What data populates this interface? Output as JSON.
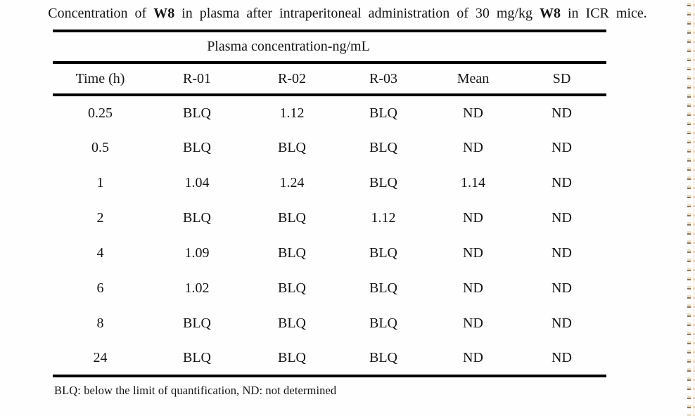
{
  "title": {
    "part1": "Concentration of ",
    "bold1": "W8",
    "part2": " in plasma after intraperitoneal administration of 30 mg/kg ",
    "bold2": "W8",
    "part3": " in ICR mice."
  },
  "table": {
    "span_header": "Plasma concentration-ng/mL",
    "columns": [
      "Time (h)",
      "R-01",
      "R-02",
      "R-03",
      "Mean",
      "SD"
    ],
    "rows": [
      [
        "0.25",
        "BLQ",
        "1.12",
        "BLQ",
        "ND",
        "ND"
      ],
      [
        "0.5",
        "BLQ",
        "BLQ",
        "BLQ",
        "ND",
        "ND"
      ],
      [
        "1",
        "1.04",
        "1.24",
        "BLQ",
        "1.14",
        "ND"
      ],
      [
        "2",
        "BLQ",
        "BLQ",
        "1.12",
        "ND",
        "ND"
      ],
      [
        "4",
        "1.09",
        "BLQ",
        "BLQ",
        "ND",
        "ND"
      ],
      [
        "6",
        "1.02",
        "BLQ",
        "BLQ",
        "ND",
        "ND"
      ],
      [
        "8",
        "BLQ",
        "BLQ",
        "BLQ",
        "ND",
        "ND"
      ],
      [
        "24",
        "BLQ",
        "BLQ",
        "BLQ",
        "ND",
        "ND"
      ]
    ]
  },
  "footnote": "BLQ: below the limit of quantification, ND: not determined",
  "colors": {
    "text": "#141414",
    "rule": "#000000",
    "page_bg": "#fefefe",
    "edge_bg": "#fdf5e6",
    "edge_dot_cream": "#eedcbe",
    "edge_dot_dark": "#96705a"
  }
}
